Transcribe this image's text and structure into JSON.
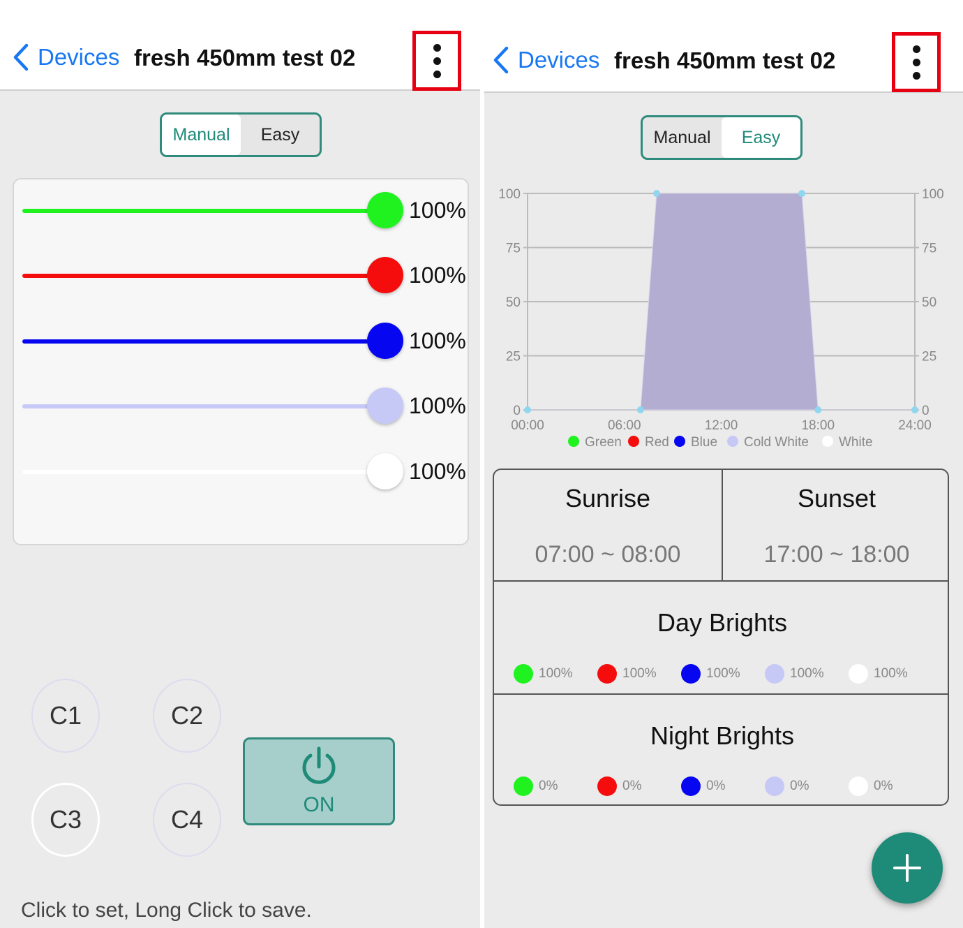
{
  "colors": {
    "accent": "#1e8a78",
    "link": "#1877f2",
    "highlight": "#e60012",
    "green": "#1ff21f",
    "red": "#f50d0d",
    "blue": "#0606f0",
    "cold_white": "#c6c8f6",
    "white": "#ffffff",
    "area_fill": "#b3aed1"
  },
  "left": {
    "nav": {
      "back_label": "Devices",
      "title": "fresh 450mm test 02",
      "menu_icon": "more-vertical-icon"
    },
    "mode_toggle": {
      "manual": "Manual",
      "easy": "Easy",
      "selected": "Manual"
    },
    "sliders": [
      {
        "channel": "Green",
        "value": "100%",
        "level": 1.0,
        "color": "#1ff21f"
      },
      {
        "channel": "Red",
        "value": "100%",
        "level": 1.0,
        "color": "#f50d0d"
      },
      {
        "channel": "Blue",
        "value": "100%",
        "level": 1.0,
        "color": "#0606f0"
      },
      {
        "channel": "Cold White",
        "value": "100%",
        "level": 1.0,
        "color": "#c6c8f6"
      },
      {
        "channel": "White",
        "value": "100%",
        "level": 1.0,
        "color": "#ffffff"
      }
    ],
    "presets": [
      "C1",
      "C2",
      "C3",
      "C4"
    ],
    "power": {
      "label": "ON",
      "icon": "power-icon"
    },
    "hint": "Click to set, Long Click to save."
  },
  "right": {
    "nav": {
      "back_label": "Devices",
      "title": "fresh 450mm test 02",
      "menu_icon": "more-vertical-icon"
    },
    "mode_toggle": {
      "manual": "Manual",
      "easy": "Easy",
      "selected": "Easy"
    },
    "chart_data": {
      "type": "area",
      "x_ticks": [
        "00:00",
        "06:00",
        "12:00",
        "18:00",
        "24:00"
      ],
      "y_ticks": [
        0,
        25,
        50,
        75,
        100
      ],
      "ylim": [
        0,
        100
      ],
      "xlim_hours": [
        0,
        24
      ],
      "points": [
        {
          "x": "00:00",
          "y": 0
        },
        {
          "x": "07:00",
          "y": 0
        },
        {
          "x": "08:00",
          "y": 100
        },
        {
          "x": "17:00",
          "y": 100
        },
        {
          "x": "18:00",
          "y": 0
        },
        {
          "x": "24:00",
          "y": 0
        }
      ],
      "legend": [
        {
          "name": "Green",
          "color": "#1ff21f"
        },
        {
          "name": "Red",
          "color": "#f50d0d"
        },
        {
          "name": "Blue",
          "color": "#0606f0"
        },
        {
          "name": "Cold White",
          "color": "#c6c8f6"
        },
        {
          "name": "White",
          "color": "#ffffff"
        }
      ],
      "legend_position": "bottom",
      "grid": true
    },
    "sunrise": {
      "title": "Sunrise",
      "time": "07:00 ~ 08:00"
    },
    "sunset": {
      "title": "Sunset",
      "time": "17:00 ~ 18:00"
    },
    "day": {
      "title": "Day Brights",
      "values": [
        {
          "color": "#1ff21f",
          "value": "100%"
        },
        {
          "color": "#f50d0d",
          "value": "100%"
        },
        {
          "color": "#0606f0",
          "value": "100%"
        },
        {
          "color": "#c6c8f6",
          "value": "100%"
        },
        {
          "color": "#ffffff",
          "value": "100%"
        }
      ]
    },
    "night": {
      "title": "Night Brights",
      "values": [
        {
          "color": "#1ff21f",
          "value": "0%"
        },
        {
          "color": "#f50d0d",
          "value": "0%"
        },
        {
          "color": "#0606f0",
          "value": "0%"
        },
        {
          "color": "#c6c8f6",
          "value": "0%"
        },
        {
          "color": "#ffffff",
          "value": "0%"
        }
      ]
    },
    "fab_icon": "plus-icon"
  }
}
